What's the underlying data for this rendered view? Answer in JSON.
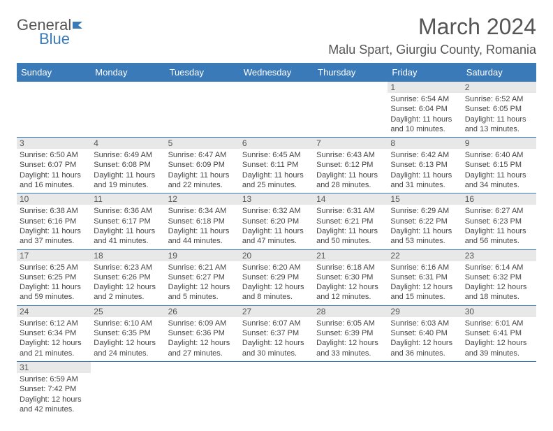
{
  "logo": {
    "text_general": "General",
    "text_blue": "Blue"
  },
  "header": {
    "month_title": "March 2024",
    "location": "Malu Spart, Giurgiu County, Romania"
  },
  "colors": {
    "header_bg": "#3a7ab8",
    "header_text": "#ffffff",
    "day_label_bg": "#e8e8e8",
    "row_border": "#3a7ab8",
    "text": "#444444"
  },
  "weekdays": [
    "Sunday",
    "Monday",
    "Tuesday",
    "Wednesday",
    "Thursday",
    "Friday",
    "Saturday"
  ],
  "weeks": [
    [
      null,
      null,
      null,
      null,
      null,
      {
        "d": "1",
        "sunrise": "Sunrise: 6:54 AM",
        "sunset": "Sunset: 6:04 PM",
        "daylight": "Daylight: 11 hours and 10 minutes."
      },
      {
        "d": "2",
        "sunrise": "Sunrise: 6:52 AM",
        "sunset": "Sunset: 6:05 PM",
        "daylight": "Daylight: 11 hours and 13 minutes."
      }
    ],
    [
      {
        "d": "3",
        "sunrise": "Sunrise: 6:50 AM",
        "sunset": "Sunset: 6:07 PM",
        "daylight": "Daylight: 11 hours and 16 minutes."
      },
      {
        "d": "4",
        "sunrise": "Sunrise: 6:49 AM",
        "sunset": "Sunset: 6:08 PM",
        "daylight": "Daylight: 11 hours and 19 minutes."
      },
      {
        "d": "5",
        "sunrise": "Sunrise: 6:47 AM",
        "sunset": "Sunset: 6:09 PM",
        "daylight": "Daylight: 11 hours and 22 minutes."
      },
      {
        "d": "6",
        "sunrise": "Sunrise: 6:45 AM",
        "sunset": "Sunset: 6:11 PM",
        "daylight": "Daylight: 11 hours and 25 minutes."
      },
      {
        "d": "7",
        "sunrise": "Sunrise: 6:43 AM",
        "sunset": "Sunset: 6:12 PM",
        "daylight": "Daylight: 11 hours and 28 minutes."
      },
      {
        "d": "8",
        "sunrise": "Sunrise: 6:42 AM",
        "sunset": "Sunset: 6:13 PM",
        "daylight": "Daylight: 11 hours and 31 minutes."
      },
      {
        "d": "9",
        "sunrise": "Sunrise: 6:40 AM",
        "sunset": "Sunset: 6:15 PM",
        "daylight": "Daylight: 11 hours and 34 minutes."
      }
    ],
    [
      {
        "d": "10",
        "sunrise": "Sunrise: 6:38 AM",
        "sunset": "Sunset: 6:16 PM",
        "daylight": "Daylight: 11 hours and 37 minutes."
      },
      {
        "d": "11",
        "sunrise": "Sunrise: 6:36 AM",
        "sunset": "Sunset: 6:17 PM",
        "daylight": "Daylight: 11 hours and 41 minutes."
      },
      {
        "d": "12",
        "sunrise": "Sunrise: 6:34 AM",
        "sunset": "Sunset: 6:18 PM",
        "daylight": "Daylight: 11 hours and 44 minutes."
      },
      {
        "d": "13",
        "sunrise": "Sunrise: 6:32 AM",
        "sunset": "Sunset: 6:20 PM",
        "daylight": "Daylight: 11 hours and 47 minutes."
      },
      {
        "d": "14",
        "sunrise": "Sunrise: 6:31 AM",
        "sunset": "Sunset: 6:21 PM",
        "daylight": "Daylight: 11 hours and 50 minutes."
      },
      {
        "d": "15",
        "sunrise": "Sunrise: 6:29 AM",
        "sunset": "Sunset: 6:22 PM",
        "daylight": "Daylight: 11 hours and 53 minutes."
      },
      {
        "d": "16",
        "sunrise": "Sunrise: 6:27 AM",
        "sunset": "Sunset: 6:23 PM",
        "daylight": "Daylight: 11 hours and 56 minutes."
      }
    ],
    [
      {
        "d": "17",
        "sunrise": "Sunrise: 6:25 AM",
        "sunset": "Sunset: 6:25 PM",
        "daylight": "Daylight: 11 hours and 59 minutes."
      },
      {
        "d": "18",
        "sunrise": "Sunrise: 6:23 AM",
        "sunset": "Sunset: 6:26 PM",
        "daylight": "Daylight: 12 hours and 2 minutes."
      },
      {
        "d": "19",
        "sunrise": "Sunrise: 6:21 AM",
        "sunset": "Sunset: 6:27 PM",
        "daylight": "Daylight: 12 hours and 5 minutes."
      },
      {
        "d": "20",
        "sunrise": "Sunrise: 6:20 AM",
        "sunset": "Sunset: 6:29 PM",
        "daylight": "Daylight: 12 hours and 8 minutes."
      },
      {
        "d": "21",
        "sunrise": "Sunrise: 6:18 AM",
        "sunset": "Sunset: 6:30 PM",
        "daylight": "Daylight: 12 hours and 12 minutes."
      },
      {
        "d": "22",
        "sunrise": "Sunrise: 6:16 AM",
        "sunset": "Sunset: 6:31 PM",
        "daylight": "Daylight: 12 hours and 15 minutes."
      },
      {
        "d": "23",
        "sunrise": "Sunrise: 6:14 AM",
        "sunset": "Sunset: 6:32 PM",
        "daylight": "Daylight: 12 hours and 18 minutes."
      }
    ],
    [
      {
        "d": "24",
        "sunrise": "Sunrise: 6:12 AM",
        "sunset": "Sunset: 6:34 PM",
        "daylight": "Daylight: 12 hours and 21 minutes."
      },
      {
        "d": "25",
        "sunrise": "Sunrise: 6:10 AM",
        "sunset": "Sunset: 6:35 PM",
        "daylight": "Daylight: 12 hours and 24 minutes."
      },
      {
        "d": "26",
        "sunrise": "Sunrise: 6:09 AM",
        "sunset": "Sunset: 6:36 PM",
        "daylight": "Daylight: 12 hours and 27 minutes."
      },
      {
        "d": "27",
        "sunrise": "Sunrise: 6:07 AM",
        "sunset": "Sunset: 6:37 PM",
        "daylight": "Daylight: 12 hours and 30 minutes."
      },
      {
        "d": "28",
        "sunrise": "Sunrise: 6:05 AM",
        "sunset": "Sunset: 6:39 PM",
        "daylight": "Daylight: 12 hours and 33 minutes."
      },
      {
        "d": "29",
        "sunrise": "Sunrise: 6:03 AM",
        "sunset": "Sunset: 6:40 PM",
        "daylight": "Daylight: 12 hours and 36 minutes."
      },
      {
        "d": "30",
        "sunrise": "Sunrise: 6:01 AM",
        "sunset": "Sunset: 6:41 PM",
        "daylight": "Daylight: 12 hours and 39 minutes."
      }
    ],
    [
      {
        "d": "31",
        "sunrise": "Sunrise: 6:59 AM",
        "sunset": "Sunset: 7:42 PM",
        "daylight": "Daylight: 12 hours and 42 minutes."
      },
      null,
      null,
      null,
      null,
      null,
      null
    ]
  ]
}
